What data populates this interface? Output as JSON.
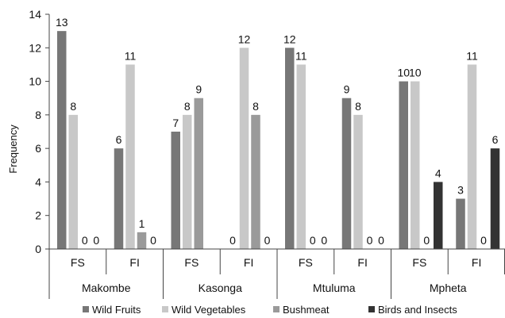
{
  "chart_data": {
    "type": "bar",
    "ylabel": "Frequency",
    "ylim": [
      0,
      14
    ],
    "y_ticks": [
      "0",
      "2",
      "4",
      "6",
      "8",
      "10",
      "12",
      "14"
    ],
    "groups": [
      {
        "label": "Makombe",
        "subcategories": [
          "FS",
          "FI"
        ]
      },
      {
        "label": "Kasonga",
        "subcategories": [
          "FS",
          "FI"
        ]
      },
      {
        "label": "Mtuluma",
        "subcategories": [
          "FS",
          "FI"
        ]
      },
      {
        "label": "Mpheta",
        "subcategories": [
          "FS",
          "FI"
        ]
      }
    ],
    "series": [
      {
        "name": "Wild Fruits",
        "color": "#777777",
        "values": [
          13,
          6,
          7,
          0,
          12,
          9,
          10,
          3
        ]
      },
      {
        "name": "Wild Vegetables",
        "color": "#c8c8c8",
        "values": [
          8,
          11,
          8,
          12,
          11,
          8,
          10,
          11
        ]
      },
      {
        "name": "Bushmeat",
        "color": "#9a9a9a",
        "values": [
          0,
          1,
          9,
          8,
          0,
          0,
          0,
          0
        ]
      },
      {
        "name": "Birds and Insects",
        "color": "#333333",
        "values": [
          0,
          0,
          0,
          0,
          0,
          0,
          4,
          6
        ]
      }
    ],
    "data_labels": [
      [
        "13",
        "6",
        "7",
        "0",
        "12",
        "9",
        "10",
        "3"
      ],
      [
        "8",
        "11",
        "8",
        "12",
        "11",
        "8",
        "10",
        "11"
      ],
      [
        "0",
        "1",
        "9",
        "8",
        "0",
        "0",
        "0",
        "0"
      ],
      [
        "0",
        "0",
        "",
        "0",
        "0",
        "0",
        "4",
        "6"
      ]
    ],
    "legend_position": "bottom",
    "grid": false
  }
}
